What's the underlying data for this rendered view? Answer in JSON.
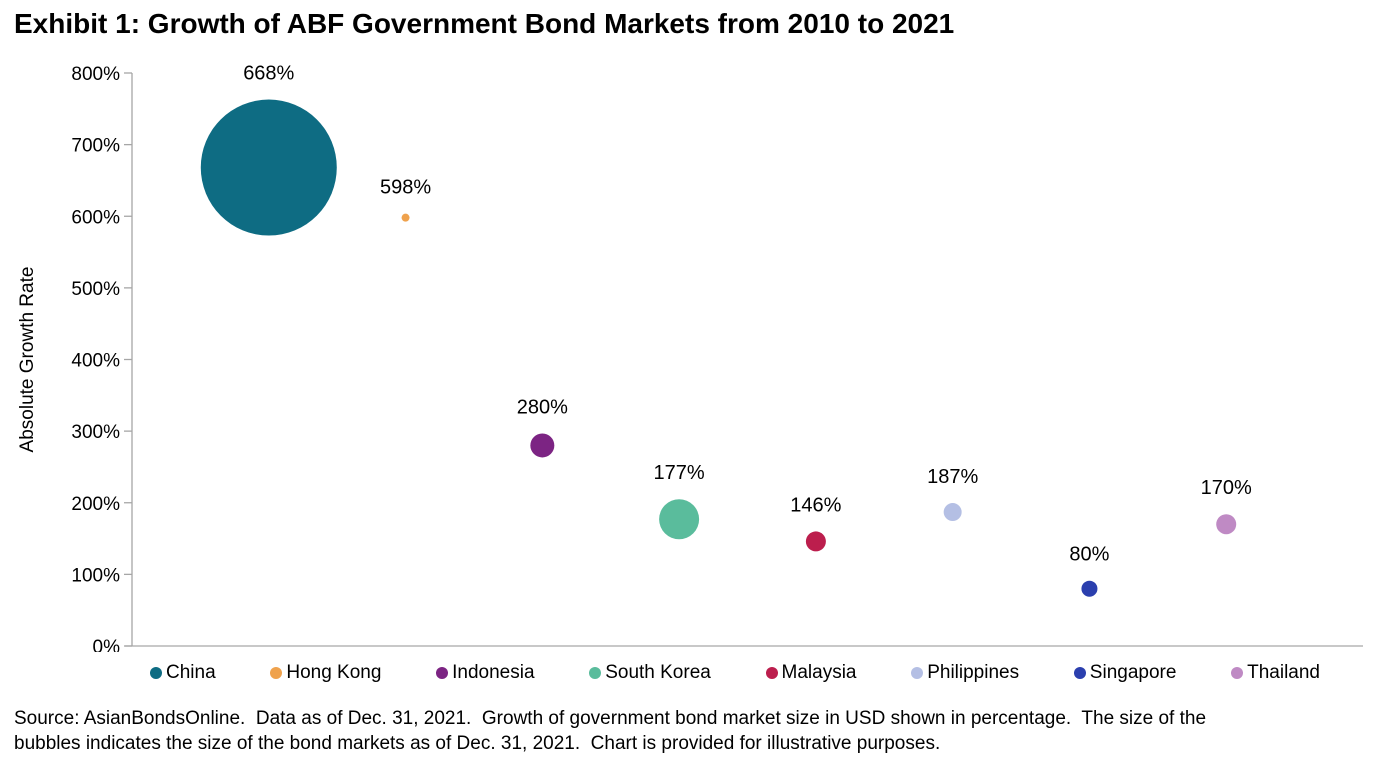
{
  "page": {
    "title": "Exhibit 1: Growth of ABF Government Bond Markets from 2010 to 2021",
    "footer": "Source: AsianBondsOnline.  Data as of Dec. 31, 2021.  Growth of government bond market size in USD shown in percentage.  The size of the\nbubbles indicates the size of the bond markets as of Dec. 31, 2021.  Chart is provided for illustrative purposes."
  },
  "colors": {
    "background": "#ffffff",
    "axis": "#a6a6a6",
    "text": "#000000"
  },
  "chart_data": {
    "type": "scatter",
    "subtype": "bubble",
    "title": "Exhibit 1: Growth of ABF Government Bond Markets from 2010 to 2021",
    "xlabel": "",
    "ylabel": "Absolute Growth Rate",
    "ylim": [
      0,
      800
    ],
    "ytick_values": [
      0,
      100,
      200,
      300,
      400,
      500,
      600,
      700,
      800
    ],
    "ytick_labels": [
      "0%",
      "100%",
      "200%",
      "300%",
      "400%",
      "500%",
      "600%",
      "700%",
      "800%"
    ],
    "grid": false,
    "legend_position": "bottom",
    "bubble_size_note": "bubble area encodes bond market size as of Dec. 31, 2021",
    "points": [
      {
        "name": "China",
        "value": 668,
        "label": "668%",
        "color": "#0e6c83",
        "bubble_radius_px": 68
      },
      {
        "name": "Hong Kong",
        "value": 598,
        "label": "598%",
        "color": "#efa24d",
        "bubble_radius_px": 4
      },
      {
        "name": "Indonesia",
        "value": 280,
        "label": "280%",
        "color": "#7c2483",
        "bubble_radius_px": 12
      },
      {
        "name": "South Korea",
        "value": 177,
        "label": "177%",
        "color": "#5abc9c",
        "bubble_radius_px": 20
      },
      {
        "name": "Malaysia",
        "value": 146,
        "label": "146%",
        "color": "#bc1e4d",
        "bubble_radius_px": 10
      },
      {
        "name": "Philippines",
        "value": 187,
        "label": "187%",
        "color": "#b4bfe4",
        "bubble_radius_px": 9
      },
      {
        "name": "Singapore",
        "value": 80,
        "label": "80%",
        "color": "#2b3fae",
        "bubble_radius_px": 8
      },
      {
        "name": "Thailand",
        "value": 170,
        "label": "170%",
        "color": "#bf8ac4",
        "bubble_radius_px": 10
      }
    ]
  }
}
